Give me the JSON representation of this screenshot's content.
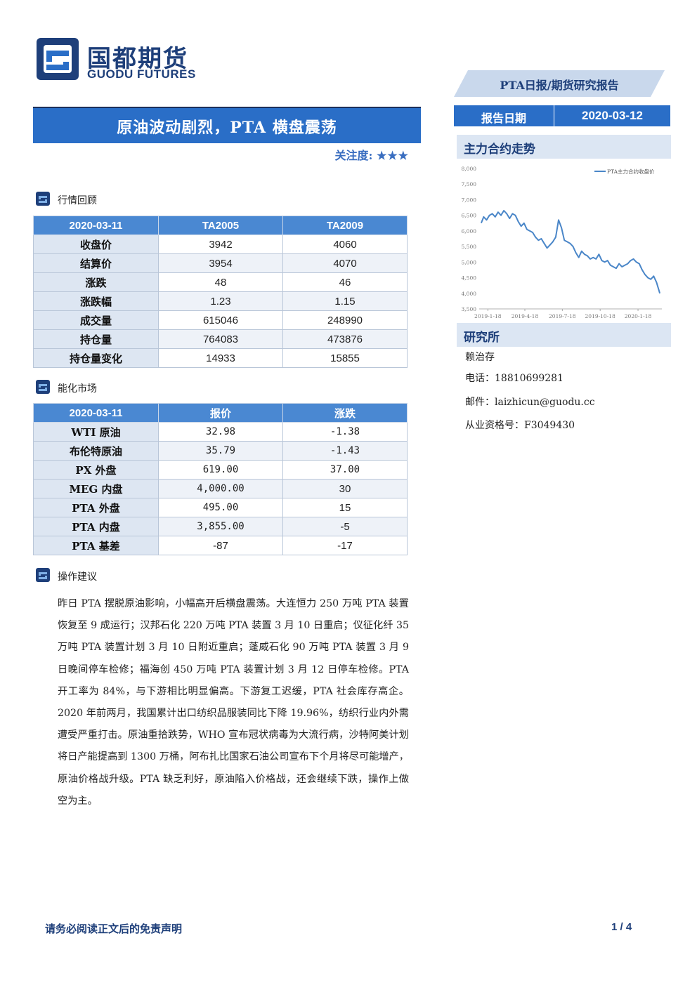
{
  "header": {
    "logo_cn": "国都期货",
    "logo_en": "GUODU FUTURES",
    "report_type": "PTA日报/期货研究报告"
  },
  "title": {
    "main": "原油波动剧烈，PTA 横盘震荡",
    "attention_label": "关注度:",
    "attention_stars": "★★★"
  },
  "sidebar": {
    "date_label": "报告日期",
    "date_value": "2020-03-12",
    "trend_title": "主力合约走势",
    "institute_title": "研究所",
    "analyst": "赖治存",
    "phone": "电话：18810699281",
    "email": "邮件：laizhicun@guodu.cc",
    "license": "从业资格号：F3049430"
  },
  "sections": {
    "market_review": "行情回顾",
    "energy_market": "能化市场",
    "advice": "操作建议"
  },
  "table1": {
    "headers": [
      "2020-03-11",
      "TA2005",
      "TA2009"
    ],
    "rows": [
      [
        "收盘价",
        "3942",
        "4060"
      ],
      [
        "结算价",
        "3954",
        "4070"
      ],
      [
        "涨跌",
        "48",
        "46"
      ],
      [
        "涨跌幅",
        "1.23",
        "1.15"
      ],
      [
        "成交量",
        "615046",
        "248990"
      ],
      [
        "持仓量",
        "764083",
        "473876"
      ],
      [
        "持仓量变化",
        "14933",
        "15855"
      ]
    ]
  },
  "table2": {
    "headers": [
      "2020-03-11",
      "报价",
      "涨跌"
    ],
    "rows": [
      [
        "WTI 原油",
        "32.98",
        "-1.38"
      ],
      [
        "布伦特原油",
        "35.79",
        "-1.43"
      ],
      [
        "PX 外盘",
        "619.00",
        "37.00"
      ],
      [
        "MEG 内盘",
        "4,000.00",
        "30"
      ],
      [
        "PTA 外盘",
        "495.00",
        "15"
      ],
      [
        "PTA 内盘",
        "3,855.00",
        "-5"
      ],
      [
        "PTA 基差",
        "-87",
        "-17"
      ]
    ]
  },
  "advice_text": "昨日 PTA 摆脱原油影响，小幅高开后横盘震荡。大连恒力 250 万吨 PTA 装置恢复至 9 成运行；汉邦石化 220 万吨 PTA 装置 3 月 10 日重启；仪征化纤 35 万吨 PTA 装置计划 3 月 10 日附近重启；蓬威石化 90 万吨 PTA 装置 3 月 9 日晚间停车检修；福海创 450 万吨 PTA 装置计划 3 月 12 日停车检修。PTA 开工率为 84%，与下游相比明显偏高。下游复工迟缓，PTA 社会库存高企。2020 年前两月，我国累计出口纺织品服装同比下降 19.96%，纺织行业内外需遭受严重打击。原油重拾跌势，WHO 宣布冠状病毒为大流行病，沙特阿美计划将日产能提高到 1300 万桶，阿布扎比国家石油公司宣布下个月将尽可能增产，原油价格战升级。PTA 缺乏利好，原油陷入价格战，还会继续下跌，操作上做空为主。",
  "footer": {
    "disclaimer": "请务必阅读正文后的免责声明",
    "page": "1 / 4"
  },
  "colors": {
    "brand_blue": "#2a6ec7",
    "header_blue": "#4a88d2",
    "light_blue": "#dde6f2",
    "line_blue": "#4a86c8"
  },
  "chart_data": {
    "type": "line",
    "legend": "PTA主力合约收盘价",
    "legend_position": "top-right",
    "ylim": [
      3500,
      8000
    ],
    "yticks": [
      "3,500",
      "4,000",
      "4,500",
      "5,000",
      "5,500",
      "6,000",
      "6,500",
      "7,000",
      "7,500",
      "8,000"
    ],
    "xticks": [
      "2019-1-18",
      "2019-4-18",
      "2019-7-18",
      "2019-10-18",
      "2020-1-18"
    ],
    "series": [
      {
        "name": "PTA主力合约收盘价",
        "x": [
          "2019-01-02",
          "2019-01-08",
          "2019-01-15",
          "2019-01-22",
          "2019-01-29",
          "2019-02-05",
          "2019-02-12",
          "2019-02-19",
          "2019-02-26",
          "2019-03-05",
          "2019-03-12",
          "2019-03-19",
          "2019-03-26",
          "2019-04-02",
          "2019-04-09",
          "2019-04-16",
          "2019-04-23",
          "2019-04-30",
          "2019-05-07",
          "2019-05-14",
          "2019-05-21",
          "2019-05-28",
          "2019-06-04",
          "2019-06-11",
          "2019-06-18",
          "2019-06-25",
          "2019-07-02",
          "2019-07-09",
          "2019-07-16",
          "2019-07-23",
          "2019-07-30",
          "2019-08-06",
          "2019-08-13",
          "2019-08-20",
          "2019-08-27",
          "2019-09-03",
          "2019-09-10",
          "2019-09-17",
          "2019-09-24",
          "2019-10-01",
          "2019-10-08",
          "2019-10-15",
          "2019-10-22",
          "2019-10-29",
          "2019-11-05",
          "2019-11-12",
          "2019-11-19",
          "2019-11-26",
          "2019-12-03",
          "2019-12-10",
          "2019-12-17",
          "2019-12-24",
          "2019-12-31",
          "2020-01-07",
          "2020-01-14",
          "2020-01-21",
          "2020-01-28",
          "2020-02-04",
          "2020-02-11",
          "2020-02-18",
          "2020-02-25",
          "2020-03-03",
          "2020-03-11"
        ],
        "values": [
          6250,
          6450,
          6350,
          6500,
          6550,
          6450,
          6600,
          6500,
          6650,
          6550,
          6400,
          6550,
          6500,
          6300,
          6150,
          6250,
          6050,
          6000,
          5950,
          5800,
          5700,
          5750,
          5600,
          5450,
          5550,
          5650,
          5800,
          6350,
          6100,
          5700,
          5650,
          5600,
          5500,
          5300,
          5150,
          5350,
          5250,
          5200,
          5100,
          5150,
          5100,
          5250,
          5050,
          5000,
          5050,
          4900,
          4850,
          4800,
          4950,
          4850,
          4900,
          4950,
          5050,
          5100,
          5000,
          4950,
          4750,
          4600,
          4500,
          4450,
          4550,
          4350,
          4000
        ]
      }
    ]
  }
}
